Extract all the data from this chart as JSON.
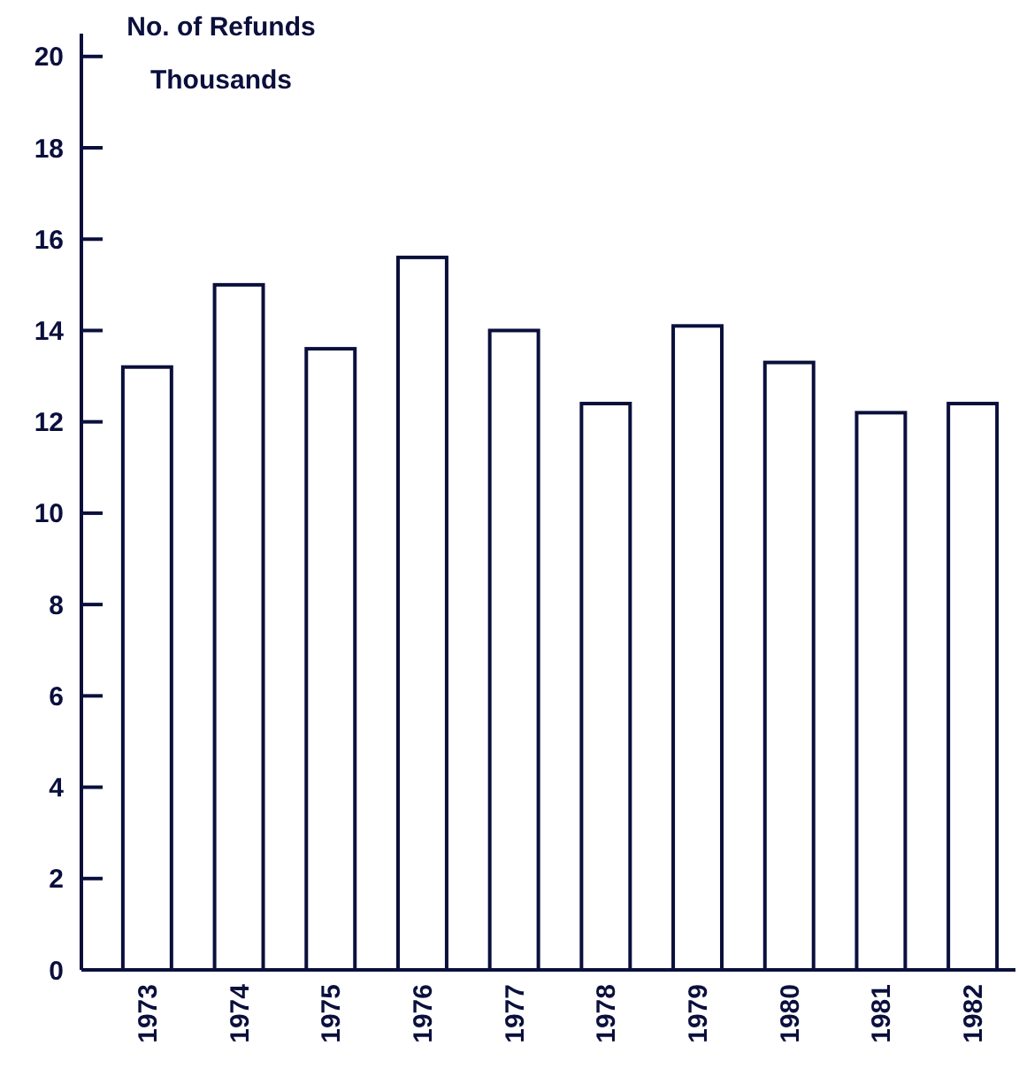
{
  "chart_data": {
    "type": "bar",
    "title": "No. of Refunds",
    "subtitle": "Thousands",
    "categories": [
      "1973",
      "1974",
      "1975",
      "1976",
      "1977",
      "1978",
      "1979",
      "1980",
      "1981",
      "1982"
    ],
    "values": [
      13.2,
      15.0,
      13.6,
      15.6,
      14.0,
      12.4,
      14.1,
      13.3,
      12.2,
      12.4
    ],
    "color": "#ffffff",
    "ylim": [
      0,
      20.5
    ],
    "yticks": [
      0,
      2,
      4,
      6,
      8,
      10,
      12,
      14,
      16,
      18,
      20
    ]
  }
}
